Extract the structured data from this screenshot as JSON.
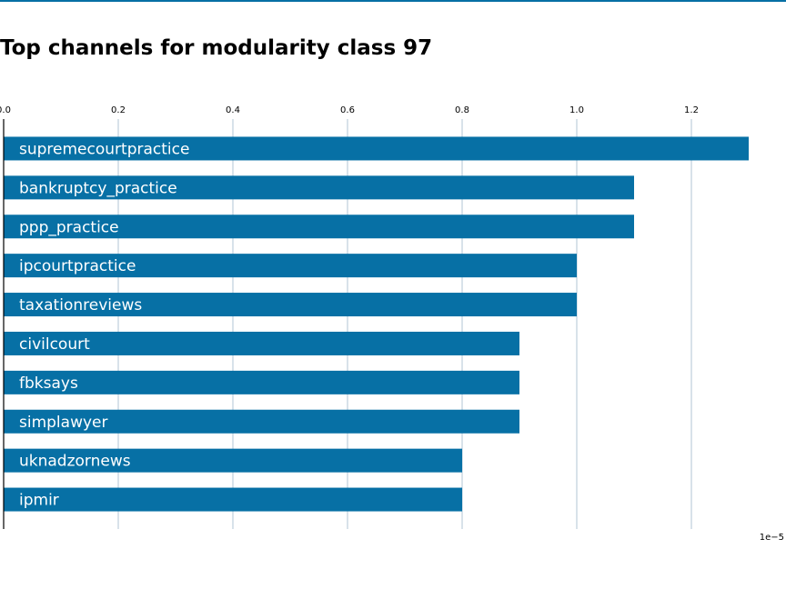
{
  "colors": {
    "bar": "#0770a5",
    "top_rule": "#0770a5",
    "grid": "#b0c4d4",
    "axis": "#000000"
  },
  "chart_data": {
    "type": "bar",
    "orientation": "horizontal",
    "title": "Top channels for modularity class 97",
    "xlabel": "",
    "ylabel": "",
    "x_scale_label": "1e−5",
    "xlim": [
      0.0,
      1.35
    ],
    "xticks": [
      0.0,
      0.2,
      0.4,
      0.6,
      0.8,
      1.0,
      1.2
    ],
    "xtick_labels": [
      "0.0",
      "0.2",
      "0.4",
      "0.6",
      "0.8",
      "1.0",
      "1.2"
    ],
    "xaxis_position": "top",
    "grid": "vertical",
    "categories": [
      "supremecourtpractice",
      "bankruptcy_practice",
      "ppp_practice",
      "ipcourtpractice",
      "taxationreviews",
      "civilcourt",
      "fbksays",
      "simplawyer",
      "uknadzornews",
      "ipmir"
    ],
    "values": [
      1.3,
      1.1,
      1.1,
      1.0,
      1.0,
      0.9,
      0.9,
      0.9,
      0.8,
      0.8
    ]
  }
}
